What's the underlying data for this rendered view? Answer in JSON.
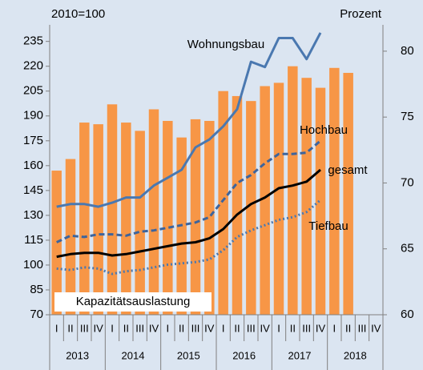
{
  "chart_data": {
    "type": "bar_line",
    "left_axis_label": "2010=100",
    "right_axis_label": "Prozent",
    "categories": [
      "I",
      "II",
      "III",
      "IV",
      "I",
      "II",
      "III",
      "IV",
      "I",
      "II",
      "III",
      "IV",
      "I",
      "II",
      "III",
      "IV",
      "I",
      "II",
      "III",
      "IV",
      "I",
      "II",
      "III",
      "IV"
    ],
    "years": [
      "2013",
      "2014",
      "2015",
      "2016",
      "2017",
      "2018"
    ],
    "ylim": [
      70,
      245
    ],
    "yticks": [
      70,
      85,
      100,
      115,
      130,
      145,
      160,
      175,
      190,
      205,
      220,
      235
    ],
    "y2lim": [
      60,
      82
    ],
    "y2ticks": [
      60,
      65,
      70,
      75,
      80
    ],
    "series": [
      {
        "name": "Kapazitätsauslastung",
        "type": "bar",
        "color": "#f79646",
        "values": [
          157,
          164,
          186,
          185,
          197,
          186,
          181,
          194,
          187,
          177,
          188,
          187,
          205,
          202,
          199,
          208,
          210,
          220,
          213,
          207,
          219,
          216,
          null,
          null
        ]
      },
      {
        "name": "Wohnungsbau",
        "type": "line",
        "axis": "y2",
        "color": "#4a78b0",
        "dash": "solid",
        "values": [
          68.2,
          68.4,
          68.4,
          68.2,
          68.5,
          68.9,
          68.9,
          69.8,
          70.4,
          71.0,
          72.7,
          73.3,
          74.3,
          75.6,
          79.2,
          78.8,
          81.0,
          81.0,
          79.4,
          81.4,
          null,
          null,
          null,
          null
        ]
      },
      {
        "name": "Hochbau",
        "type": "line",
        "axis": "y2",
        "color": "#3d649c",
        "dash": "dashed",
        "values": [
          65.5,
          66.0,
          65.9,
          66.1,
          66.1,
          66.0,
          66.3,
          66.4,
          66.6,
          66.8,
          67.0,
          67.4,
          68.7,
          70.0,
          70.6,
          71.5,
          72.2,
          72.2,
          72.3,
          73.2,
          null,
          null,
          null,
          null
        ]
      },
      {
        "name": "gesamt",
        "type": "line",
        "axis": "y2",
        "color": "#000000",
        "dash": "solid",
        "values": [
          64.4,
          64.6,
          64.7,
          64.7,
          64.5,
          64.6,
          64.8,
          65.0,
          65.2,
          65.4,
          65.5,
          65.8,
          66.5,
          67.6,
          68.4,
          68.9,
          69.6,
          69.8,
          70.1,
          71.0,
          null,
          null,
          null,
          null
        ]
      },
      {
        "name": "Tiefbau",
        "type": "line",
        "axis": "y2",
        "color": "#4a78b0",
        "dash": "dotted",
        "values": [
          63.5,
          63.4,
          63.6,
          63.5,
          63.1,
          63.3,
          63.4,
          63.6,
          63.8,
          63.9,
          64.0,
          64.2,
          64.9,
          65.9,
          66.4,
          66.8,
          67.2,
          67.4,
          67.8,
          68.7,
          null,
          null,
          null,
          null
        ]
      }
    ]
  }
}
